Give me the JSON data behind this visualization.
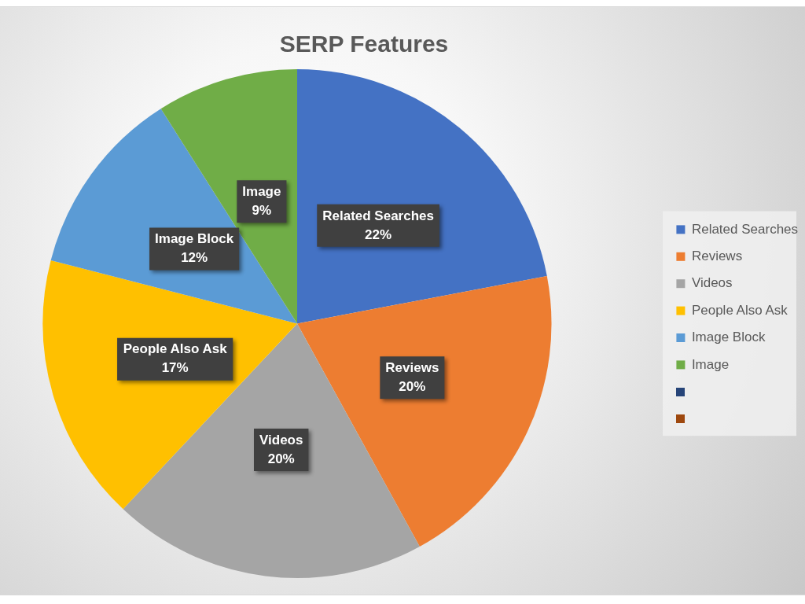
{
  "chart_data": {
    "type": "pie",
    "title": "SERP Features",
    "categories": [
      "Related Searches",
      "Reviews",
      "Videos",
      "People Also Ask",
      "Image Block",
      "Image"
    ],
    "values": [
      22,
      20,
      20,
      17,
      12,
      9
    ],
    "colors": [
      "#4472c4",
      "#ed7d31",
      "#a5a5a5",
      "#ffc000",
      "#5b9bd5",
      "#70ad47"
    ],
    "value_labels": [
      "22%",
      "20%",
      "20%",
      "17%",
      "12%",
      "9%"
    ],
    "legend": "right"
  }
}
